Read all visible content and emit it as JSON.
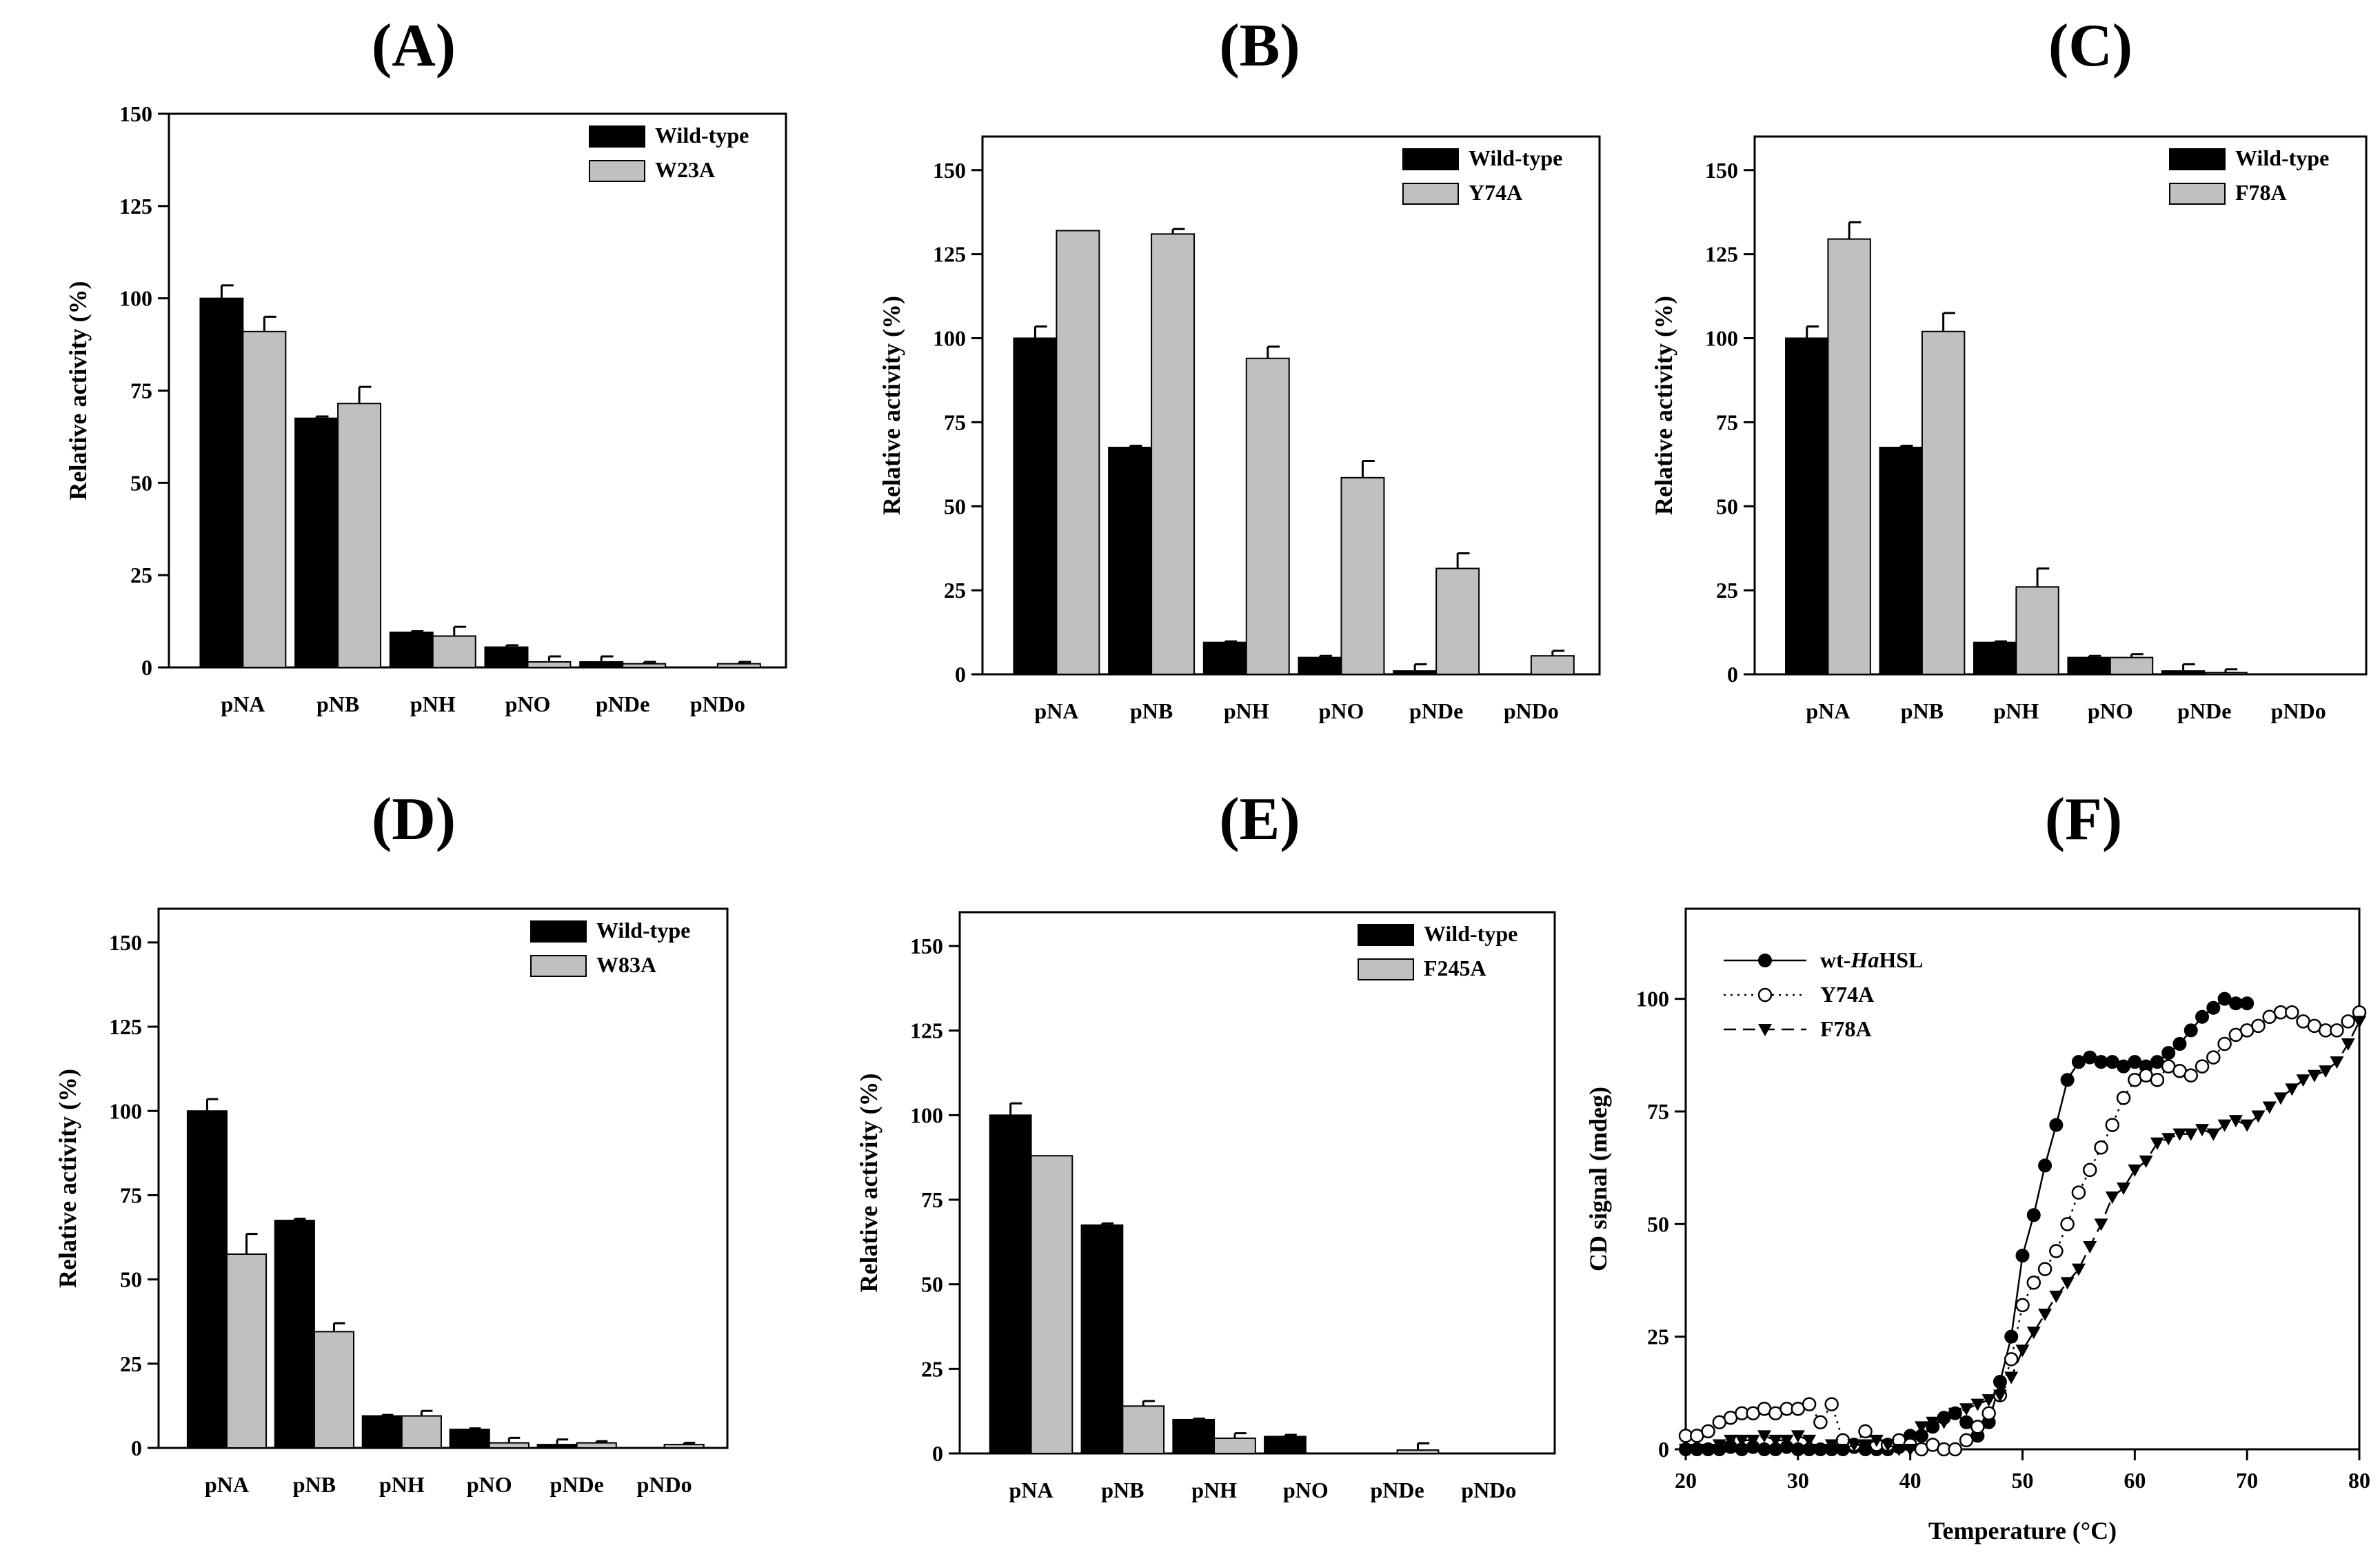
{
  "figure": {
    "colors": {
      "wild_type": "#000000",
      "mutant": "#c0c0c0",
      "axis": "#000000"
    },
    "panels": [
      {
        "id": "A",
        "title": "(A)",
        "chart_data": {
          "type": "bar",
          "categories": [
            "pNA",
            "pNB",
            "pNH",
            "pNO",
            "pNDe",
            "pNDo"
          ],
          "series": [
            {
              "name": "Wild-type",
              "values": [
                100,
                67.5,
                9.5,
                5.5,
                1.5,
                0
              ],
              "errors": [
                3.5,
                0.5,
                0.3,
                0.5,
                1.5,
                0
              ]
            },
            {
              "name": "W23A",
              "values": [
                91,
                71.5,
                8.5,
                1.5,
                1,
                1
              ],
              "errors": [
                4,
                4.5,
                2.5,
                1.5,
                0.5,
                0.5
              ]
            }
          ],
          "ylabel": "Relative activity (%)",
          "ylim": [
            0,
            150
          ],
          "yticks": [
            0,
            25,
            50,
            75,
            100,
            125,
            150
          ],
          "legend": "top-right"
        }
      },
      {
        "id": "B",
        "title": "(B)",
        "chart_data": {
          "type": "bar",
          "categories": [
            "pNA",
            "pNB",
            "pNH",
            "pNO",
            "pNDe",
            "pNDo"
          ],
          "series": [
            {
              "name": "Wild-type",
              "values": [
                100,
                67.5,
                9.5,
                5,
                1,
                0
              ],
              "errors": [
                3.5,
                0.5,
                0.3,
                0.5,
                2,
                0
              ]
            },
            {
              "name": "Y74A",
              "values": [
                132,
                131,
                94,
                58.5,
                31.5,
                5.5
              ],
              "errors": [
                0,
                1.5,
                3.5,
                5,
                4.5,
                1.5
              ]
            }
          ],
          "ylabel": "Relative activity (%)",
          "ylim": [
            0,
            160
          ],
          "yticks": [
            0,
            25,
            50,
            75,
            100,
            125,
            150
          ],
          "legend": "top-right"
        }
      },
      {
        "id": "C",
        "title": "(C)",
        "chart_data": {
          "type": "bar",
          "categories": [
            "pNA",
            "pNB",
            "pNH",
            "pNO",
            "pNDe",
            "pNDo"
          ],
          "series": [
            {
              "name": "Wild-type",
              "values": [
                100,
                67.5,
                9.5,
                5,
                1,
                0
              ],
              "errors": [
                3.5,
                0.5,
                0.3,
                0.5,
                2,
                0
              ]
            },
            {
              "name": "F78A",
              "values": [
                129.5,
                102,
                26,
                5,
                0.5,
                0
              ],
              "errors": [
                5,
                5.5,
                5.5,
                1,
                1,
                0
              ]
            }
          ],
          "ylabel": "Relative activity (%)",
          "ylim": [
            0,
            160
          ],
          "yticks": [
            0,
            25,
            50,
            75,
            100,
            125,
            150
          ],
          "legend": "top-right"
        }
      },
      {
        "id": "D",
        "title": "(D)",
        "chart_data": {
          "type": "bar",
          "categories": [
            "pNA",
            "pNB",
            "pNH",
            "pNO",
            "pNDe",
            "pNDo"
          ],
          "series": [
            {
              "name": "Wild-type",
              "values": [
                100,
                67.5,
                9.5,
                5.5,
                1,
                0
              ],
              "errors": [
                3.5,
                0.5,
                0.3,
                0.3,
                1.5,
                0
              ]
            },
            {
              "name": "W83A",
              "values": [
                57.5,
                34.5,
                9.5,
                1.5,
                1.5,
                1
              ],
              "errors": [
                6,
                2.5,
                1.5,
                1.5,
                0.5,
                0.5
              ]
            }
          ],
          "ylabel": "Relative activity (%)",
          "ylim": [
            0,
            160
          ],
          "yticks": [
            0,
            25,
            50,
            75,
            100,
            125,
            150
          ],
          "legend": "top-right"
        }
      },
      {
        "id": "E",
        "title": "(E)",
        "chart_data": {
          "type": "bar",
          "categories": [
            "pNA",
            "pNB",
            "pNH",
            "pNO",
            "pNDe",
            "pNDo"
          ],
          "series": [
            {
              "name": "Wild-type",
              "values": [
                100,
                67.5,
                10,
                5,
                0,
                0
              ],
              "errors": [
                3.5,
                0.5,
                0.3,
                0.5,
                0,
                0
              ]
            },
            {
              "name": "F245A",
              "values": [
                88,
                14,
                4.5,
                0,
                1,
                0
              ],
              "errors": [
                0,
                1.5,
                1.5,
                0,
                2,
                0
              ]
            }
          ],
          "ylabel": "Relative activity (%)",
          "ylim": [
            0,
            160
          ],
          "yticks": [
            0,
            25,
            50,
            75,
            100,
            125,
            150
          ],
          "legend": "top-right"
        }
      },
      {
        "id": "F",
        "title": "(F)",
        "chart_data": {
          "type": "line",
          "xlabel": "Temperature (°C)",
          "ylabel": "CD signal (mdeg)",
          "xlim": [
            20,
            80
          ],
          "ylim": [
            0,
            120
          ],
          "xticks": [
            20,
            30,
            40,
            50,
            60,
            70,
            80
          ],
          "yticks": [
            0,
            25,
            50,
            75,
            100
          ],
          "legend": "top-left",
          "series": [
            {
              "name_prefix": "wt-",
              "name_italic": "Ha",
              "name_suffix": "HSL",
              "marker": "filled-circle",
              "linestyle": "solid",
              "x": [
                20,
                21,
                22,
                23,
                24,
                25,
                26,
                27,
                28,
                29,
                30,
                31,
                32,
                33,
                34,
                35,
                36,
                37,
                38,
                39,
                40,
                41,
                42,
                43,
                44,
                45,
                46,
                47,
                48,
                49,
                50,
                51,
                52,
                53,
                54,
                55,
                56,
                57,
                58,
                59,
                60,
                61,
                62,
                63,
                64,
                65,
                66,
                67,
                68,
                69,
                70
              ],
              "y": [
                0,
                0,
                0,
                0,
                0.5,
                0,
                0.5,
                0,
                0,
                0.5,
                0,
                0,
                0,
                0,
                0,
                0.5,
                0,
                0,
                0,
                0.5,
                3,
                3,
                5,
                7,
                8,
                6,
                3,
                6,
                15,
                25,
                43,
                52,
                63,
                72,
                82,
                86,
                87,
                86,
                86,
                85,
                86,
                85,
                86,
                88,
                90,
                93,
                96,
                98,
                100,
                99,
                99
              ]
            },
            {
              "name": "Y74A",
              "marker": "open-circle",
              "linestyle": "dotted",
              "x": [
                20,
                21,
                22,
                23,
                24,
                25,
                26,
                27,
                28,
                29,
                30,
                31,
                32,
                33,
                34,
                35,
                36,
                37,
                38,
                39,
                40,
                41,
                42,
                43,
                44,
                45,
                46,
                47,
                48,
                49,
                50,
                51,
                52,
                53,
                54,
                55,
                56,
                57,
                58,
                59,
                60,
                61,
                62,
                63,
                64,
                65,
                66,
                67,
                68,
                69,
                70,
                71,
                72,
                73,
                74,
                75,
                76,
                77,
                78,
                79,
                80
              ],
              "y": [
                3,
                3,
                4,
                6,
                7,
                8,
                8,
                9,
                8,
                9,
                9,
                10,
                6,
                10,
                2,
                1,
                4,
                1,
                1,
                2,
                1,
                0,
                1,
                0,
                0,
                2,
                5,
                8,
                12,
                20,
                32,
                37,
                40,
                44,
                50,
                57,
                62,
                67,
                72,
                78,
                82,
                83,
                82,
                85,
                84,
                83,
                85,
                87,
                90,
                92,
                93,
                94,
                96,
                97,
                97,
                95,
                94,
                93,
                93,
                95,
                97
              ]
            },
            {
              "name": "F78A",
              "marker": "filled-triangle-down",
              "linestyle": "dashed",
              "x": [
                20,
                21,
                22,
                23,
                24,
                25,
                26,
                27,
                28,
                29,
                30,
                31,
                32,
                33,
                34,
                35,
                36,
                37,
                38,
                39,
                40,
                41,
                42,
                43,
                44,
                45,
                46,
                47,
                48,
                49,
                50,
                51,
                52,
                53,
                54,
                55,
                56,
                57,
                58,
                59,
                60,
                61,
                62,
                63,
                64,
                65,
                66,
                67,
                68,
                69,
                70,
                71,
                72,
                73,
                74,
                75,
                76,
                77,
                78,
                79,
                80
              ],
              "y": [
                0,
                0,
                0,
                1,
                2,
                2,
                2,
                3,
                2,
                2,
                3,
                2,
                0,
                1,
                0,
                1,
                1,
                2,
                1,
                0,
                0,
                5,
                6,
                6,
                8,
                9,
                10,
                11,
                12,
                16,
                22,
                26,
                30,
                34,
                37,
                40,
                45,
                50,
                56,
                58,
                62,
                64,
                68,
                69,
                70,
                70,
                71,
                70,
                72,
                73,
                72,
                74,
                76,
                78,
                80,
                82,
                83,
                84,
                86,
                90,
                95
              ]
            }
          ]
        }
      }
    ]
  }
}
